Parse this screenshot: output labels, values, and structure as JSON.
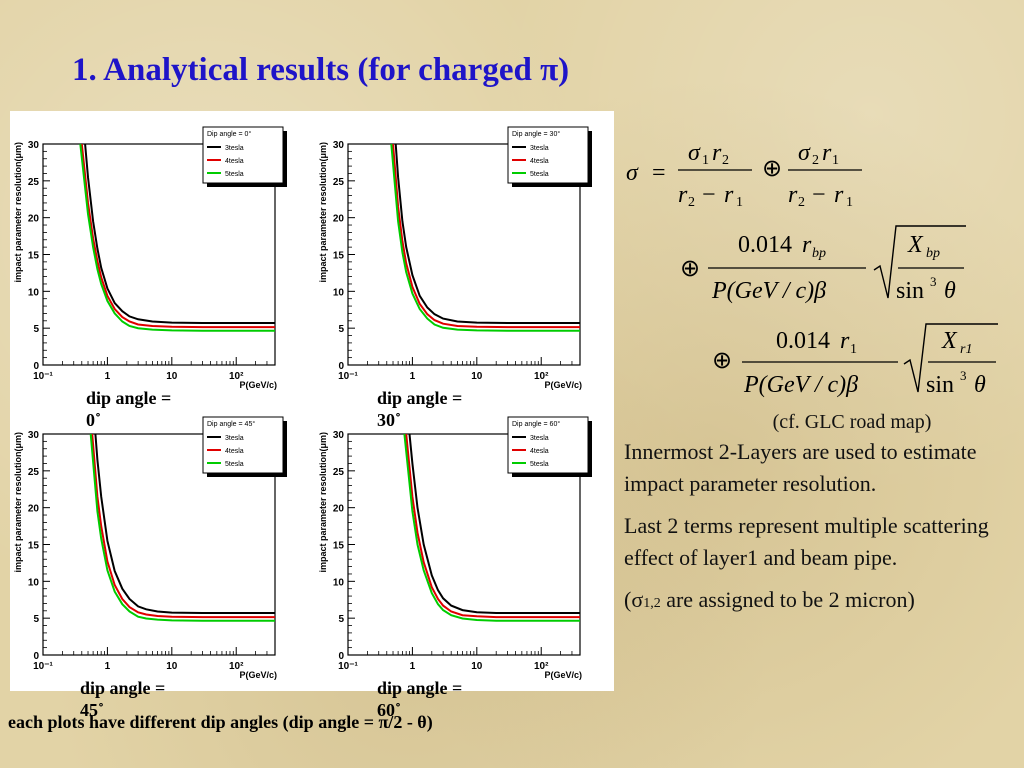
{
  "slide": {
    "title": "1. Analytical results (for charged π)",
    "captions": [
      {
        "line1": "dip angle =",
        "line2": "0˚"
      },
      {
        "line1": "dip angle =",
        "line2": "30˚"
      },
      {
        "line1": "dip angle =",
        "line2": "45˚"
      },
      {
        "line1": "dip angle =",
        "line2": "60˚"
      }
    ],
    "bottom_caption": "each plots have different dip angles (dip angle = π/2 - θ)",
    "cf_note": "(cf. GLC road map)",
    "para1": "Innermost 2-Layers are used to estimate impact parameter resolution.",
    "para2": "Last 2 terms represent multiple scattering effect of layer1 and beam pipe.",
    "para3_pre": "(σ",
    "para3_sub": "1,2",
    "para3_post": " are assigned to be 2  micron)"
  },
  "equation": {
    "sigma": "σ",
    "eq": "=",
    "oplus": "⊕",
    "minus": "−",
    "s1": "σ",
    "s1sub": "1",
    "r2": "r",
    "r2sub": "2",
    "s2": "σ",
    "s2sub": "2",
    "r1": "r",
    "r1sub": "1",
    "coef": "0.014",
    "rbp": "r",
    "rbpsub": "bp",
    "r1t": "r",
    "r1tsub": "1",
    "pden": "P(GeV / c)β",
    "Xbp": "X",
    "Xbpsub": "bp",
    "Xr1": "X",
    "Xr1sub": "r1",
    "sin": "sin",
    "cube": "3",
    "theta": "θ"
  },
  "chart_data": [
    {
      "type": "line",
      "legend_title": "Dip angle = 0°",
      "xlabel": "P(GeV/c)",
      "ylabel": "impact parameter resolution(μm)",
      "x_scale": "log",
      "xlim": [
        0.1,
        400
      ],
      "ylim": [
        0,
        30
      ],
      "x_ticks": [
        "10⁻¹",
        "1",
        "10",
        "10²"
      ],
      "y_ticks": [
        "0",
        "5",
        "10",
        "15",
        "20",
        "25",
        "30"
      ],
      "legend_placement": "top-right",
      "series": [
        {
          "name": "3tesla",
          "color": "#000000",
          "x": [
            0.45,
            0.5,
            0.6,
            0.7,
            0.8,
            1.0,
            1.3,
            1.7,
            2.2,
            3,
            5,
            10,
            30,
            100,
            400
          ],
          "y": [
            30,
            25.5,
            19.5,
            15.8,
            13.2,
            10.4,
            8.4,
            7.3,
            6.6,
            6.2,
            5.9,
            5.75,
            5.7,
            5.7,
            5.7
          ]
        },
        {
          "name": "4tesla",
          "color": "#e00000",
          "x": [
            0.4,
            0.5,
            0.6,
            0.7,
            0.8,
            1.0,
            1.3,
            1.7,
            2.2,
            3,
            5,
            10,
            30,
            100,
            400
          ],
          "y": [
            30,
            22,
            17.2,
            14.1,
            11.9,
            9.4,
            7.6,
            6.5,
            5.9,
            5.5,
            5.3,
            5.2,
            5.15,
            5.15,
            5.15
          ]
        },
        {
          "name": "5tesla",
          "color": "#00cc00",
          "x": [
            0.38,
            0.5,
            0.6,
            0.7,
            0.8,
            1.0,
            1.3,
            1.7,
            2.2,
            3,
            5,
            10,
            30,
            100,
            400
          ],
          "y": [
            30,
            20.5,
            16,
            13,
            11,
            8.7,
            7,
            5.9,
            5.3,
            5,
            4.8,
            4.7,
            4.65,
            4.65,
            4.65
          ]
        }
      ]
    },
    {
      "type": "line",
      "legend_title": "Dip angle = 30°",
      "xlabel": "P(GeV/c)",
      "ylabel": "impact parameter resolution(μm)",
      "x_scale": "log",
      "xlim": [
        0.1,
        400
      ],
      "ylim": [
        0,
        30
      ],
      "x_ticks": [
        "10⁻¹",
        "1",
        "10",
        "10²"
      ],
      "y_ticks": [
        "0",
        "5",
        "10",
        "15",
        "20",
        "25",
        "30"
      ],
      "legend_placement": "top-right",
      "series": [
        {
          "name": "3tesla",
          "color": "#000000",
          "x": [
            0.55,
            0.6,
            0.7,
            0.8,
            1.0,
            1.3,
            1.7,
            2.2,
            3,
            5,
            10,
            30,
            100,
            400
          ],
          "y": [
            30,
            25.5,
            19.5,
            16,
            12.2,
            9.4,
            7.8,
            6.9,
            6.3,
            5.9,
            5.75,
            5.7,
            5.7,
            5.7
          ]
        },
        {
          "name": "4tesla",
          "color": "#e00000",
          "x": [
            0.5,
            0.6,
            0.7,
            0.8,
            1.0,
            1.3,
            1.7,
            2.2,
            3,
            5,
            10,
            30,
            100,
            400
          ],
          "y": [
            30,
            21.5,
            16.8,
            13.8,
            10.6,
            8.3,
            6.9,
            6.1,
            5.6,
            5.3,
            5.2,
            5.15,
            5.15,
            5.15
          ]
        },
        {
          "name": "5tesla",
          "color": "#00cc00",
          "x": [
            0.47,
            0.6,
            0.7,
            0.8,
            1.0,
            1.3,
            1.7,
            2.2,
            3,
            5,
            10,
            30,
            100,
            400
          ],
          "y": [
            30,
            19.5,
            15.3,
            12.6,
            9.7,
            7.6,
            6.3,
            5.5,
            5.05,
            4.8,
            4.7,
            4.65,
            4.65,
            4.65
          ]
        }
      ]
    },
    {
      "type": "line",
      "legend_title": "Dip angle = 45°",
      "xlabel": "P(GeV/c)",
      "ylabel": "impact parameter resolution(μm)",
      "x_scale": "log",
      "xlim": [
        0.1,
        400
      ],
      "ylim": [
        0,
        30
      ],
      "x_ticks": [
        "10⁻¹",
        "1",
        "10",
        "10²"
      ],
      "y_ticks": [
        "0",
        "5",
        "10",
        "15",
        "20",
        "25",
        "30"
      ],
      "legend_placement": "top-right",
      "series": [
        {
          "name": "3tesla",
          "color": "#000000",
          "x": [
            0.65,
            0.7,
            0.8,
            1.0,
            1.3,
            1.7,
            2.2,
            3,
            4,
            6,
            10,
            30,
            100,
            400
          ],
          "y": [
            30,
            26.5,
            21.5,
            15.5,
            11.4,
            9,
            7.6,
            6.6,
            6.2,
            5.9,
            5.75,
            5.7,
            5.7,
            5.7
          ]
        },
        {
          "name": "4tesla",
          "color": "#e00000",
          "x": [
            0.58,
            0.7,
            0.8,
            1.0,
            1.3,
            1.7,
            2.2,
            3,
            4,
            6,
            10,
            30,
            100,
            400
          ],
          "y": [
            30,
            21.5,
            17.5,
            12.7,
            9.5,
            7.6,
            6.5,
            5.8,
            5.5,
            5.3,
            5.2,
            5.15,
            5.15,
            5.15
          ]
        },
        {
          "name": "5tesla",
          "color": "#00cc00",
          "x": [
            0.55,
            0.7,
            0.8,
            1.0,
            1.3,
            1.7,
            2.2,
            3,
            4,
            6,
            10,
            30,
            100,
            400
          ],
          "y": [
            30,
            19.5,
            15.8,
            11.5,
            8.6,
            6.9,
            5.9,
            5.2,
            4.95,
            4.8,
            4.7,
            4.65,
            4.65,
            4.65
          ]
        }
      ]
    },
    {
      "type": "line",
      "legend_title": "Dip angle = 60°",
      "xlabel": "P(GeV/c)",
      "ylabel": "impact parameter resolution(μm)",
      "x_scale": "log",
      "xlim": [
        0.1,
        400
      ],
      "ylim": [
        0,
        30
      ],
      "x_ticks": [
        "10⁻¹",
        "1",
        "10",
        "10²"
      ],
      "y_ticks": [
        "0",
        "5",
        "10",
        "15",
        "20",
        "25",
        "30"
      ],
      "legend_placement": "top-right",
      "series": [
        {
          "name": "3tesla",
          "color": "#000000",
          "x": [
            0.9,
            1.0,
            1.2,
            1.5,
            2.0,
            2.5,
            3,
            4,
            6,
            10,
            20,
            50,
            100,
            400
          ],
          "y": [
            30,
            26,
            20,
            15,
            10.8,
            8.8,
            7.7,
            6.7,
            6.1,
            5.8,
            5.7,
            5.7,
            5.7,
            5.7
          ]
        },
        {
          "name": "4tesla",
          "color": "#e00000",
          "x": [
            0.8,
            1.0,
            1.2,
            1.5,
            2.0,
            2.5,
            3,
            4,
            6,
            10,
            20,
            50,
            100,
            400
          ],
          "y": [
            30,
            21.5,
            16.6,
            12.6,
            9.2,
            7.6,
            6.7,
            5.9,
            5.4,
            5.25,
            5.15,
            5.15,
            5.15,
            5.15
          ]
        },
        {
          "name": "5tesla",
          "color": "#00cc00",
          "x": [
            0.75,
            1.0,
            1.2,
            1.5,
            2.0,
            2.5,
            3,
            4,
            6,
            10,
            20,
            50,
            100,
            400
          ],
          "y": [
            30,
            19.5,
            15,
            11.5,
            8.4,
            6.9,
            6.1,
            5.4,
            4.95,
            4.75,
            4.65,
            4.65,
            4.65,
            4.65
          ]
        }
      ]
    }
  ]
}
